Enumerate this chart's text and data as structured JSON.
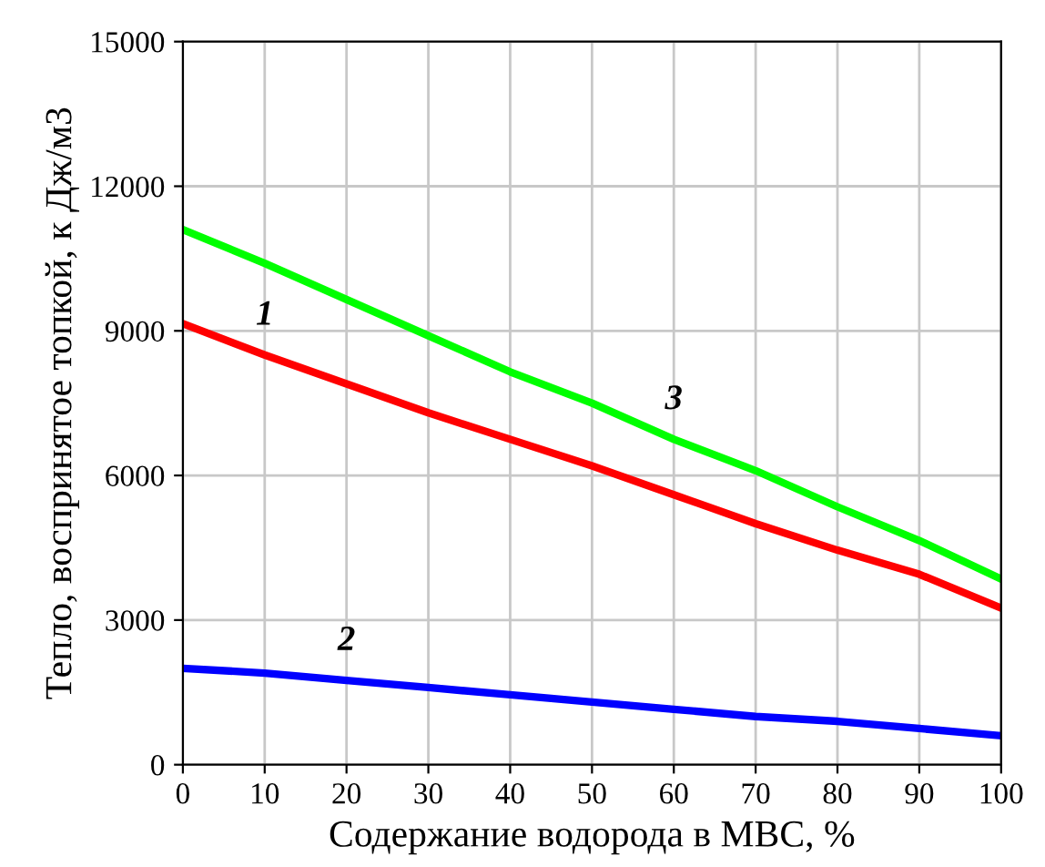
{
  "chart_data": {
    "type": "line",
    "xlabel": "Содержание водорода в МВС, %",
    "ylabel": "Тепло, воспринятое топкой, к Дж/м3",
    "x": [
      0,
      10,
      20,
      30,
      40,
      50,
      60,
      70,
      80,
      90,
      100
    ],
    "series": [
      {
        "name": "1",
        "color": "#ff0000",
        "values": [
          9150,
          8500,
          7900,
          7300,
          6750,
          6200,
          5600,
          5000,
          4450,
          3950,
          3250
        ]
      },
      {
        "name": "2",
        "color": "#0000ff",
        "values": [
          2000,
          1900,
          1750,
          1600,
          1450,
          1300,
          1150,
          1000,
          900,
          750,
          600
        ]
      },
      {
        "name": "3",
        "color": "#00ff00",
        "values": [
          11100,
          10400,
          9650,
          8900,
          8150,
          7500,
          6750,
          6100,
          5350,
          4650,
          3850
        ]
      }
    ],
    "xlim": [
      0,
      100
    ],
    "ylim": [
      0,
      15000
    ],
    "xticks": [
      0,
      10,
      20,
      30,
      40,
      50,
      60,
      70,
      80,
      90,
      100
    ],
    "yticks": [
      0,
      3000,
      6000,
      9000,
      12000,
      15000
    ],
    "grid": true,
    "legend": false,
    "marker": "none",
    "line_style": "solid"
  }
}
